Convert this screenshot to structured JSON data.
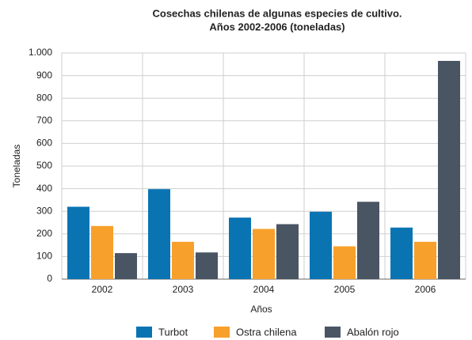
{
  "chart_data": {
    "type": "bar",
    "title": "Cosechas chilenas de algunas especies de cultivo.",
    "subtitle": "Años 2002-2006 (toneladas)",
    "x_label": "Años",
    "y_label": "Toneladas",
    "categories": [
      "2002",
      "2003",
      "2004",
      "2005",
      "2006"
    ],
    "series": [
      {
        "name": "Turbot",
        "color": "#0a74b3",
        "values": [
          320,
          398,
          272,
          298,
          228
        ]
      },
      {
        "name": "Ostra chilena",
        "color": "#f7a02b",
        "values": [
          235,
          165,
          222,
          145,
          165
        ]
      },
      {
        "name": "Abalón rojo",
        "color": "#4a5563",
        "values": [
          115,
          118,
          243,
          342,
          965
        ]
      }
    ],
    "ylim": [
      0,
      1000
    ],
    "yticks": [
      0,
      100,
      200,
      300,
      400,
      500,
      600,
      700,
      800,
      900,
      {
        "value": 1000,
        "label": "1.000"
      }
    ],
    "grid": true
  }
}
